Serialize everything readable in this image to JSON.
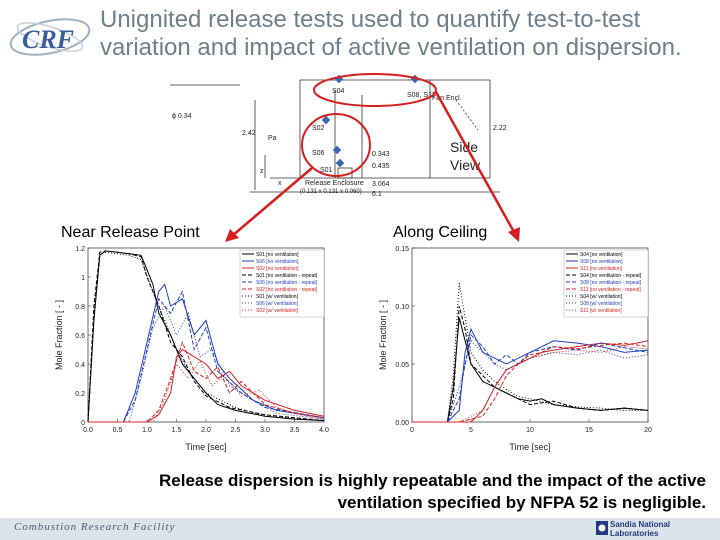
{
  "title": {
    "line1": "Unignited release tests used to quantify test-to-test",
    "line2": "variation and impact of active ventilation on dispersion."
  },
  "logo": {
    "text": "CRF"
  },
  "diagram": {
    "sensors": [
      "S04",
      "S08, S11",
      "S02",
      "S06",
      "S01"
    ],
    "dims": [
      "ϕ 0.34",
      "2.42",
      "2.22",
      "0.343",
      "0.435",
      "3.064",
      "6.1",
      "Fan Encl."
    ],
    "release_label": "Release Enclosure",
    "release_dims": "(0.131 x 0.131 x 0.060)",
    "view_label_1": "Side",
    "view_label_2": "View",
    "x_label": "x",
    "z_label": "z",
    "pa_label": "Pa"
  },
  "panel_labels": {
    "near": "Near Release Point",
    "ceiling": "Along Ceiling"
  },
  "chart_data": [
    {
      "type": "line",
      "xlabel": "Time [sec]",
      "ylabel": "Mole Fraction [ - ]",
      "xlim": [
        0,
        4
      ],
      "ylim": [
        0,
        1.2
      ],
      "xticks": [
        "0.0",
        "0.5",
        "1.0",
        "1.5",
        "2.0",
        "2.5",
        "3.0",
        "3.5",
        "4.0"
      ],
      "yticks": [
        "0",
        "0.2",
        "0.4",
        "0.6",
        "0.8",
        "1",
        "1.2"
      ],
      "legend": [
        "S01 [no ventilation]",
        "S06 [no ventilation]",
        "S02 [no ventilation]",
        "S01 [no ventilation - repeat]",
        "S06 [no ventilation - repeat]",
        "S02 [no ventilation - repeat]",
        "S01 [w/ ventilation]",
        "S06 [w/ ventilation]",
        "S02 [w/ ventilation]"
      ],
      "legend_position": "top-right",
      "series": [
        {
          "name": "S01 [no ventilation]",
          "color": "#000000",
          "dash": "",
          "x": [
            0,
            0.1,
            0.2,
            0.3,
            0.5,
            0.7,
            0.9,
            1.0,
            1.1,
            1.2,
            1.4,
            1.6,
            1.8,
            2.0,
            2.2,
            2.5,
            3.0,
            3.5,
            4.0
          ],
          "y": [
            0,
            0.7,
            1.15,
            1.18,
            1.17,
            1.16,
            1.15,
            1.05,
            0.95,
            0.75,
            0.6,
            0.4,
            0.3,
            0.2,
            0.12,
            0.08,
            0.04,
            0.02,
            0.01
          ]
        },
        {
          "name": "S06 [no ventilation]",
          "color": "#1f3fbf",
          "dash": "",
          "x": [
            0,
            0.2,
            0.4,
            0.6,
            0.8,
            1.0,
            1.2,
            1.3,
            1.4,
            1.6,
            1.8,
            2.0,
            2.2,
            2.4,
            2.8,
            3.2,
            4.0
          ],
          "y": [
            0,
            0,
            0,
            0,
            0.2,
            0.55,
            0.9,
            0.95,
            0.8,
            0.85,
            0.6,
            0.7,
            0.4,
            0.3,
            0.15,
            0.08,
            0.03
          ]
        },
        {
          "name": "S02 [no ventilation]",
          "color": "#d62020",
          "dash": "",
          "x": [
            0,
            0.5,
            1.0,
            1.2,
            1.4,
            1.5,
            1.6,
            1.8,
            2.0,
            2.2,
            2.4,
            2.6,
            2.8,
            3.0,
            3.5,
            4.0
          ],
          "y": [
            0,
            0,
            0,
            0.05,
            0.2,
            0.45,
            0.5,
            0.45,
            0.4,
            0.3,
            0.35,
            0.25,
            0.2,
            0.15,
            0.08,
            0.04
          ]
        },
        {
          "name": "S01 [no ventilation - repeat]",
          "color": "#000000",
          "dash": "4,2",
          "x": [
            0,
            0.1,
            0.2,
            0.3,
            0.5,
            0.7,
            0.9,
            1.0,
            1.1,
            1.2,
            1.4,
            1.6,
            1.8,
            2.0,
            2.4,
            3.0,
            4.0
          ],
          "y": [
            0,
            0.8,
            1.17,
            1.18,
            1.17,
            1.16,
            1.14,
            1.0,
            0.9,
            0.8,
            0.55,
            0.45,
            0.28,
            0.18,
            0.1,
            0.05,
            0.01
          ]
        },
        {
          "name": "S06 [no ventilation - repeat]",
          "color": "#1f3fbf",
          "dash": "4,2",
          "x": [
            0,
            0.6,
            0.8,
            1.0,
            1.2,
            1.4,
            1.6,
            1.8,
            2.0,
            2.2,
            2.6,
            3.0,
            4.0
          ],
          "y": [
            0,
            0,
            0.15,
            0.5,
            0.85,
            0.75,
            0.9,
            0.5,
            0.65,
            0.35,
            0.2,
            0.1,
            0.03
          ]
        },
        {
          "name": "S02 [no ventilation - repeat]",
          "color": "#d62020",
          "dash": "4,2",
          "x": [
            0,
            1.0,
            1.2,
            1.4,
            1.6,
            1.8,
            2.0,
            2.2,
            2.4,
            2.6,
            3.0,
            3.5,
            4.0
          ],
          "y": [
            0,
            0,
            0.08,
            0.3,
            0.55,
            0.35,
            0.3,
            0.38,
            0.2,
            0.28,
            0.12,
            0.06,
            0.03
          ]
        },
        {
          "name": "S01 [w/ ventilation]",
          "color": "#000000",
          "dash": "1,2",
          "x": [
            0,
            0.1,
            0.2,
            0.3,
            0.5,
            0.7,
            0.9,
            1.1,
            1.3,
            1.5,
            1.7,
            2.0,
            2.5,
            3.0,
            4.0
          ],
          "y": [
            0,
            0.75,
            1.16,
            1.17,
            1.16,
            1.15,
            1.12,
            0.9,
            0.7,
            0.5,
            0.35,
            0.2,
            0.1,
            0.04,
            0.01
          ]
        },
        {
          "name": "S06 [w/ ventilation]",
          "color": "#1f3fbf",
          "dash": "1,2",
          "x": [
            0,
            0.7,
            0.9,
            1.1,
            1.3,
            1.5,
            1.7,
            1.9,
            2.1,
            2.4,
            2.8,
            3.2,
            4.0
          ],
          "y": [
            0,
            0,
            0.3,
            0.65,
            0.8,
            0.6,
            0.75,
            0.45,
            0.5,
            0.25,
            0.15,
            0.06,
            0.02
          ]
        },
        {
          "name": "S02 [w/ ventilation]",
          "color": "#d62020",
          "dash": "1,2",
          "x": [
            0,
            1.1,
            1.3,
            1.5,
            1.7,
            1.9,
            2.1,
            2.3,
            2.6,
            2.9,
            3.2,
            3.6,
            4.0
          ],
          "y": [
            0,
            0,
            0.15,
            0.4,
            0.3,
            0.42,
            0.25,
            0.32,
            0.18,
            0.22,
            0.1,
            0.05,
            0.02
          ]
        }
      ]
    },
    {
      "type": "line",
      "xlabel": "Time [sec]",
      "ylabel": "Mole Fraction [ - ]",
      "xlim": [
        0,
        20
      ],
      "ylim": [
        0,
        0.15
      ],
      "xticks": [
        "0",
        "5",
        "10",
        "15",
        "20"
      ],
      "yticks": [
        "0.00",
        "0.05",
        "0.10",
        "0.15"
      ],
      "legend": [
        "S04 [no ventilation]",
        "S08 [no ventilation]",
        "S11 [no ventilation]",
        "S04 [no ventilation - repeat]",
        "S08 [no ventilation - repeat]",
        "S11 [no ventilation - repeat]",
        "S04 [w/ ventilation]",
        "S08 [w/ ventilation]",
        "S11 [w/ ventilation]"
      ],
      "legend_position": "top-right",
      "series": [
        {
          "name": "S04 [no ventilation]",
          "color": "#000000",
          "dash": "",
          "x": [
            0,
            2,
            3,
            3.5,
            4,
            4.5,
            5,
            6,
            7,
            8,
            9,
            10,
            11,
            12,
            14,
            16,
            18,
            20
          ],
          "y": [
            0,
            0,
            0,
            0.03,
            0.09,
            0.07,
            0.05,
            0.035,
            0.03,
            0.025,
            0.02,
            0.018,
            0.02,
            0.015,
            0.012,
            0.01,
            0.012,
            0.01
          ]
        },
        {
          "name": "S08 [no ventilation]",
          "color": "#1f3fbf",
          "dash": "",
          "x": [
            0,
            3,
            4,
            4.5,
            5,
            5.5,
            6,
            7,
            8,
            9,
            10,
            12,
            14,
            16,
            18,
            20
          ],
          "y": [
            0,
            0,
            0.01,
            0.06,
            0.08,
            0.07,
            0.06,
            0.055,
            0.05,
            0.055,
            0.06,
            0.07,
            0.068,
            0.065,
            0.06,
            0.062
          ]
        },
        {
          "name": "S11 [no ventilation]",
          "color": "#d62020",
          "dash": "",
          "x": [
            0,
            3,
            5,
            6,
            7,
            8,
            9,
            10,
            11,
            12,
            14,
            16,
            18,
            20
          ],
          "y": [
            0,
            0,
            0,
            0.01,
            0.03,
            0.045,
            0.05,
            0.055,
            0.06,
            0.062,
            0.065,
            0.068,
            0.066,
            0.07
          ]
        },
        {
          "name": "S04 [no ventilation - repeat]",
          "color": "#000000",
          "dash": "4,2",
          "x": [
            0,
            3,
            3.5,
            4,
            4.5,
            5,
            6,
            7,
            8,
            9,
            10,
            12,
            14,
            16,
            18,
            20
          ],
          "y": [
            0,
            0,
            0.02,
            0.1,
            0.08,
            0.05,
            0.04,
            0.03,
            0.025,
            0.02,
            0.015,
            0.018,
            0.012,
            0.01,
            0.012,
            0.01
          ]
        },
        {
          "name": "S08 [no ventilation - repeat]",
          "color": "#1f3fbf",
          "dash": "4,2",
          "x": [
            0,
            3,
            4,
            4.5,
            5,
            6,
            7,
            8,
            9,
            10,
            12,
            14,
            16,
            18,
            20
          ],
          "y": [
            0,
            0,
            0.02,
            0.05,
            0.075,
            0.065,
            0.05,
            0.058,
            0.05,
            0.06,
            0.065,
            0.062,
            0.068,
            0.064,
            0.06
          ]
        },
        {
          "name": "S11 [no ventilation - repeat]",
          "color": "#d62020",
          "dash": "4,2",
          "x": [
            0,
            4,
            6,
            7,
            8,
            9,
            10,
            11,
            12,
            14,
            16,
            18,
            20
          ],
          "y": [
            0,
            0,
            0.005,
            0.02,
            0.04,
            0.05,
            0.058,
            0.06,
            0.065,
            0.063,
            0.066,
            0.068,
            0.065
          ]
        },
        {
          "name": "S04 [w/ ventilation]",
          "color": "#000000",
          "dash": "1,2",
          "x": [
            0,
            3,
            3.5,
            4,
            4.5,
            5,
            6,
            7,
            8,
            9,
            10,
            12,
            14,
            16,
            18,
            20
          ],
          "y": [
            0,
            0,
            0.04,
            0.12,
            0.09,
            0.06,
            0.045,
            0.035,
            0.028,
            0.022,
            0.02,
            0.015,
            0.013,
            0.012,
            0.01,
            0.01
          ]
        },
        {
          "name": "S08 [w/ ventilation]",
          "color": "#1f3fbf",
          "dash": "1,2",
          "x": [
            0,
            3,
            4,
            5,
            6,
            7,
            8,
            9,
            10,
            12,
            14,
            16,
            18,
            20
          ],
          "y": [
            0,
            0,
            0.03,
            0.07,
            0.06,
            0.05,
            0.045,
            0.05,
            0.055,
            0.06,
            0.058,
            0.062,
            0.055,
            0.058
          ]
        },
        {
          "name": "S11 [w/ ventilation]",
          "color": "#d62020",
          "dash": "1,2",
          "x": [
            0,
            4,
            6,
            7,
            8,
            9,
            10,
            12,
            14,
            16,
            18,
            20
          ],
          "y": [
            0,
            0,
            0.01,
            0.03,
            0.045,
            0.05,
            0.055,
            0.06,
            0.062,
            0.06,
            0.065,
            0.063
          ]
        }
      ]
    }
  ],
  "caption": {
    "line1": "Release dispersion is highly repeatable and the impact of the active",
    "line2": "ventilation specified by NFPA 52 is negligible."
  },
  "footer": {
    "text": "Combustion Research Facility",
    "sandia": "Sandia National Laboratories"
  }
}
